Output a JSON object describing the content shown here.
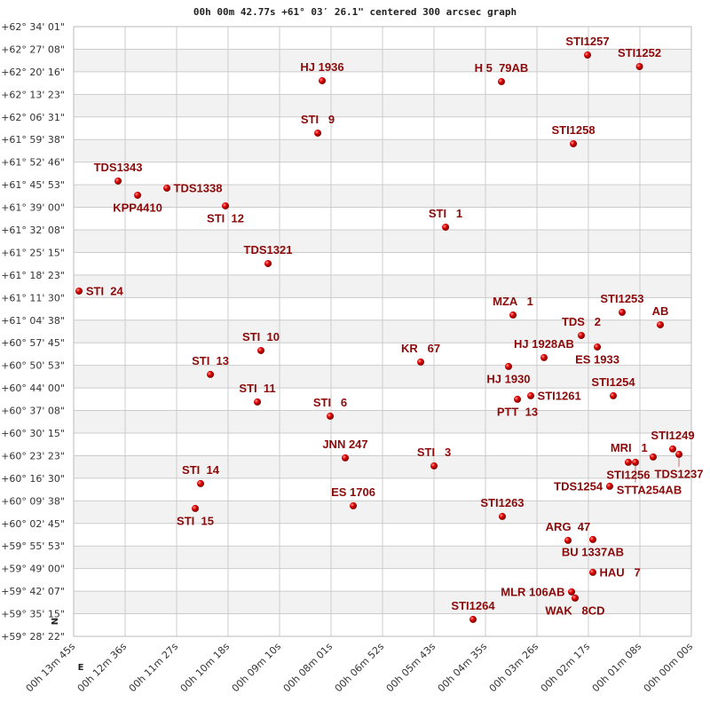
{
  "chart_data": {
    "type": "scatter",
    "title": "00h 00m 42.77s +61° 03′ 26.1\" centered 300 arcsec graph",
    "x_axis": {
      "unit": "RA",
      "reversed": true,
      "range_s": [
        825,
        0
      ],
      "tick_labels": [
        "00h 13m 45s",
        "00h 12m 36s",
        "00h 11m 27s",
        "00h 10m 18s",
        "00h 09m 10s",
        "00h 08m 01s",
        "00h 06m 52s",
        "00h 05m 43s",
        "00h 04m 35s",
        "00h 03m 26s",
        "00h 02m 17s",
        "00h 01m 08s",
        "00h 00m 00s"
      ]
    },
    "y_axis": {
      "unit": "Dec",
      "range_deg": [
        59.4728,
        62.5669
      ],
      "tick_labels": [
        "+62° 34' 01\"",
        "+62° 27' 08\"",
        "+62° 20' 16\"",
        "+62° 13' 23\"",
        "+62° 06' 31\"",
        "+61° 59' 38\"",
        "+61° 52' 46\"",
        "+61° 45' 53\"",
        "+61° 39' 00\"",
        "+61° 32' 08\"",
        "+61° 25' 15\"",
        "+61° 18' 23\"",
        "+61° 11' 30\"",
        "+61° 04' 38\"",
        "+60° 57' 45\"",
        "+60° 50' 53\"",
        "+60° 44' 00\"",
        "+60° 37' 08\"",
        "+60° 30' 15\"",
        "+60° 23' 23\"",
        "+60° 16' 30\"",
        "+60° 09' 38\"",
        "+60° 02' 45\"",
        "+59° 55' 53\"",
        "+59° 49' 00\"",
        "+59° 42' 07\"",
        "+59° 35' 15\"",
        "+59° 28' 22\""
      ]
    },
    "orientation": {
      "north": "N",
      "east": "E"
    },
    "grid": true,
    "colors": {
      "point": "#d40000",
      "label": "#8b0a0a",
      "band": "#f2f2f2",
      "grid": "#cccccc"
    },
    "points": [
      {
        "name": "STI1257",
        "ra_s": 138.7,
        "dec": 62.4228
      },
      {
        "name": "STI1252",
        "ra_s": 69.3,
        "dec": 62.3643
      },
      {
        "name": "HJ 1936",
        "ra_s": 493.1,
        "dec": 62.2923
      },
      {
        "name": "H 5  79AB",
        "ra_s": 253.7,
        "dec": 62.2878
      },
      {
        "name": "STI   9",
        "ra_s": 499.0,
        "dec": 62.0267
      },
      {
        "name": "STI1258",
        "ra_s": 157.6,
        "dec": 61.9725
      },
      {
        "name": "TDS1343",
        "ra_s": 765.7,
        "dec": 61.7835
      },
      {
        "name": "TDS1338",
        "ra_s": 700.5,
        "dec": 61.7474
      },
      {
        "name": "KPP4410",
        "ra_s": 739.6,
        "dec": 61.7114
      },
      {
        "name": "STI  12",
        "ra_s": 622.3,
        "dec": 61.6573
      },
      {
        "name": "STI   1",
        "ra_s": 328.3,
        "dec": 61.5492
      },
      {
        "name": "TDS1321",
        "ra_s": 565.4,
        "dec": 61.3645
      },
      {
        "name": "STI  24",
        "ra_s": 817.9,
        "dec": 61.225
      },
      {
        "name": "STI1253",
        "ra_s": 92.5,
        "dec": 61.117
      },
      {
        "name": "MZA   1",
        "ra_s": 238.2,
        "dec": 61.1035
      },
      {
        "name": "AB",
        "ra_s": 41.5,
        "dec": 61.0539
      },
      {
        "name": "TDS   2",
        "ra_s": 147.0,
        "dec": 60.9998
      },
      {
        "name": "ES 1933",
        "ra_s": 125.6,
        "dec": 60.9413
      },
      {
        "name": "STI  10",
        "ra_s": 574.9,
        "dec": 60.9233
      },
      {
        "name": "HJ 1928AB",
        "ra_s": 196.8,
        "dec": 60.8873
      },
      {
        "name": "KR   67",
        "ra_s": 361.5,
        "dec": 60.8648
      },
      {
        "name": "HJ 1930",
        "ra_s": 244.2,
        "dec": 60.8423
      },
      {
        "name": "STI  13",
        "ra_s": 642.4,
        "dec": 60.8017
      },
      {
        "name": "STI1261",
        "ra_s": 214.5,
        "dec": 60.6937
      },
      {
        "name": "PTT  13",
        "ra_s": 232.3,
        "dec": 60.6757
      },
      {
        "name": "STI1254",
        "ra_s": 104.3,
        "dec": 60.6937
      },
      {
        "name": "STI  11",
        "ra_s": 579.6,
        "dec": 60.6622
      },
      {
        "name": "STI   6",
        "ra_s": 482.4,
        "dec": 60.5902
      },
      {
        "name": "STI1249",
        "ra_s": 24.9,
        "dec": 60.4235
      },
      {
        "name": "TDS1237",
        "ra_s": 16.6,
        "dec": 60.3965
      },
      {
        "name": "MRI   1",
        "ra_s": 51.0,
        "dec": 60.383
      },
      {
        "name": "JNN 247",
        "ra_s": 462.3,
        "dec": 60.3785
      },
      {
        "name": "STI1256",
        "ra_s": 84.2,
        "dec": 60.356
      },
      {
        "name": "STTA254AB",
        "ra_s": 74.7,
        "dec": 60.356
      },
      {
        "name": "STI   3",
        "ra_s": 343.7,
        "dec": 60.3378
      },
      {
        "name": "STI  14",
        "ra_s": 655.5,
        "dec": 60.2478
      },
      {
        "name": "TDS1254",
        "ra_s": 109.1,
        "dec": 60.2343
      },
      {
        "name": "STI  15",
        "ra_s": 662.6,
        "dec": 60.1218
      },
      {
        "name": "ES 1706",
        "ra_s": 451.6,
        "dec": 60.1353
      },
      {
        "name": "STI1263",
        "ra_s": 252.5,
        "dec": 60.0812
      },
      {
        "name": "ARG  47",
        "ra_s": 164.8,
        "dec": 59.9597
      },
      {
        "name": "BU 1337AB",
        "ra_s": 131.6,
        "dec": 59.9642
      },
      {
        "name": "HAU   7",
        "ra_s": 131.6,
        "dec": 59.7975
      },
      {
        "name": "MLR 106AB",
        "ra_s": 160.0,
        "dec": 59.6985
      },
      {
        "name": "WAK   8CD",
        "ra_s": 155.3,
        "dec": 59.667
      },
      {
        "name": "STI1264",
        "ra_s": 291.6,
        "dec": 59.5588
      }
    ]
  }
}
